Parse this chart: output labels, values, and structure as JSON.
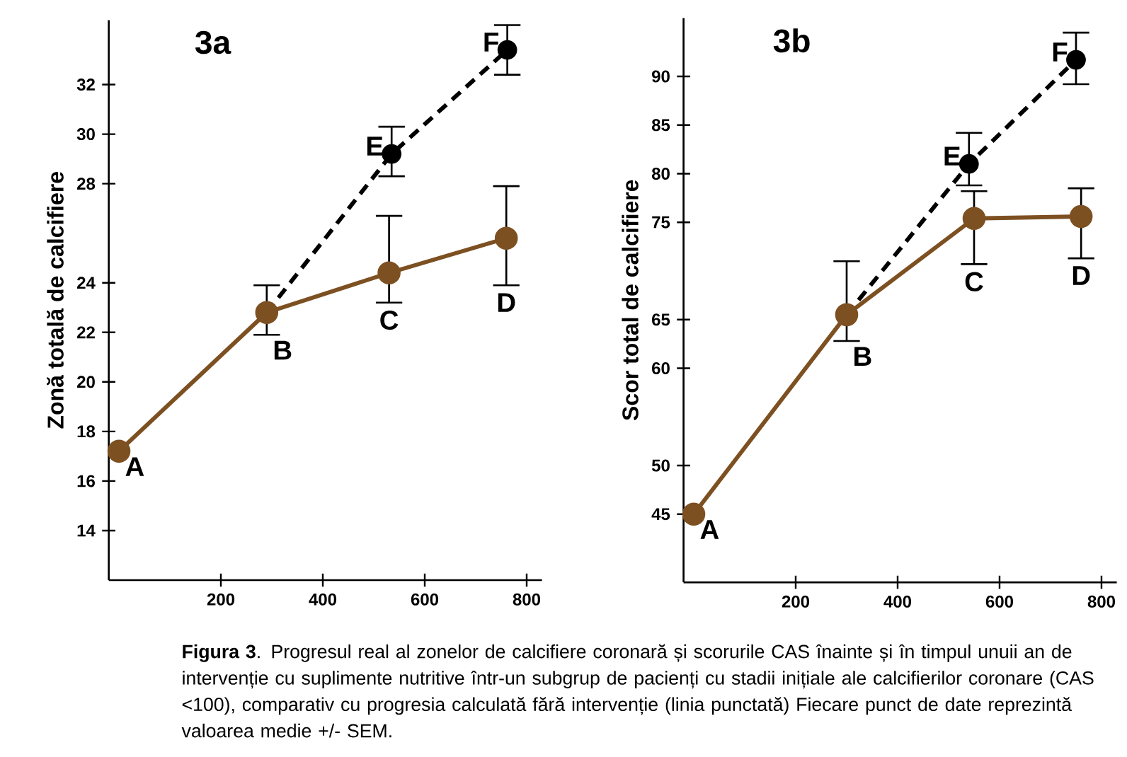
{
  "chart_data": [
    {
      "type": "line",
      "title": "3a",
      "ylabel": "Zonă totală de calcifiere",
      "xlim": [
        -20,
        830
      ],
      "xticks": [
        200,
        400,
        600,
        800
      ],
      "ylim": [
        12,
        34.6
      ],
      "yticks": [
        14,
        16,
        18,
        20,
        22,
        24,
        28,
        30,
        32
      ],
      "marker": "circle",
      "series": [
        {
          "type": "line",
          "color": "#000000",
          "line_style": "dashed",
          "marker": "none",
          "x": [
            290,
            535,
            762
          ],
          "values": [
            22.8,
            29.2,
            33.4
          ]
        },
        {
          "type": "scatter",
          "color": "#000000",
          "x": [
            535,
            762
          ],
          "values": [
            29.2,
            33.4
          ],
          "errors": [
            [
              28.3,
              30.3
            ],
            [
              32.4,
              34.4
            ]
          ]
        },
        {
          "type": "line",
          "color": "#7d5022",
          "line_style": "solid",
          "x": [
            0,
            290,
            530,
            760
          ],
          "values": [
            17.2,
            22.8,
            24.4,
            25.8
          ],
          "errors": [
            null,
            [
              21.9,
              23.9
            ],
            [
              23.2,
              26.7
            ],
            [
              23.9,
              27.9
            ]
          ]
        }
      ],
      "annotations": [
        {
          "text": "A",
          "x": 0,
          "y": 17.2
        },
        {
          "text": "B",
          "x": 290,
          "y": 22.8
        },
        {
          "text": "C",
          "x": 530,
          "y": 24.4
        },
        {
          "text": "D",
          "x": 760,
          "y": 25.8
        },
        {
          "text": "E",
          "x": 535,
          "y": 29.2
        },
        {
          "text": "F",
          "x": 762,
          "y": 33.4
        },
        "**Figura 3**. Progresul real al zonelor de calcifiere coronară și scorurile CAS înainte și în timpul unuii an de intervenție cu suplimente nutritive într-un subgrup de pacienți cu stadii inițiale ale calcifierilor coronare (CAS <100), comparativ cu progresia calculată fără intervenție (linia punctată) Fiecare punct de date reprezintă valoarea medie +/- SEM."
      ]
    },
    {
      "type": "line",
      "title": "3b",
      "ylabel": "Scor total de calcifiere",
      "xlim": [
        -20,
        830
      ],
      "xticks": [
        200,
        400,
        600,
        800
      ],
      "ylim": [
        38,
        96
      ],
      "yticks": [
        45,
        50,
        60,
        65,
        75,
        80,
        85,
        90
      ],
      "marker": "circle",
      "series": [
        {
          "type": "line",
          "color": "#000000",
          "line_style": "dashed",
          "marker": "none",
          "x": [
            300,
            540,
            750
          ],
          "values": [
            65.5,
            81.0,
            91.7
          ]
        },
        {
          "type": "scatter",
          "color": "#000000",
          "x": [
            540,
            750
          ],
          "values": [
            81.0,
            91.7
          ],
          "errors": [
            [
              78.8,
              84.2
            ],
            [
              89.2,
              94.5
            ]
          ]
        },
        {
          "type": "line",
          "color": "#7d5022",
          "line_style": "solid",
          "x": [
            0,
            300,
            550,
            760
          ],
          "values": [
            45,
            65.5,
            75.4,
            75.6
          ],
          "errors": [
            null,
            [
              62.8,
              71
            ],
            [
              70.7,
              78.2
            ],
            [
              71.3,
              78.5
            ]
          ]
        }
      ],
      "annotations": [
        {
          "text": "A",
          "x": 0,
          "y": 45
        },
        {
          "text": "B",
          "x": 300,
          "y": 65.5
        },
        {
          "text": "C",
          "x": 550,
          "y": 75.4
        },
        {
          "text": "D",
          "x": 760,
          "y": 75.6
        },
        {
          "text": "E",
          "x": 540,
          "y": 81.0
        },
        {
          "text": "F",
          "x": 750,
          "y": 91.7
        }
      ]
    }
  ]
}
